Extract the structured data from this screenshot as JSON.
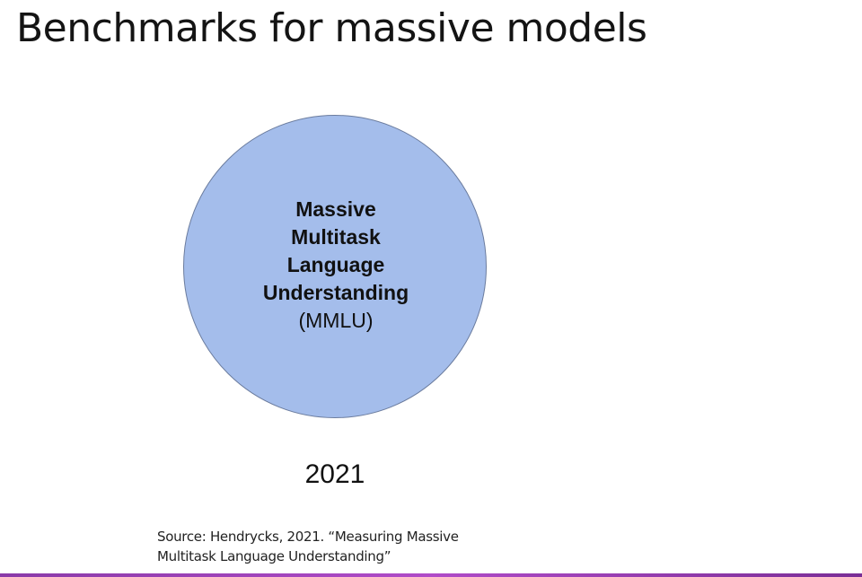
{
  "slide": {
    "title": "Benchmarks for massive models",
    "benchmark": {
      "name_line1": "Massive",
      "name_line2": "Multitask",
      "name_line3": "Language",
      "name_line4": "Understanding",
      "abbreviation": "(MMLU)",
      "year": "2021",
      "fill_color": "#a4bdeb"
    },
    "source": {
      "line1": "Source: Hendrycks, 2021. “Measuring Massive",
      "line2": "Multitask Language Understanding”"
    },
    "accent_color": "#a040c0"
  }
}
